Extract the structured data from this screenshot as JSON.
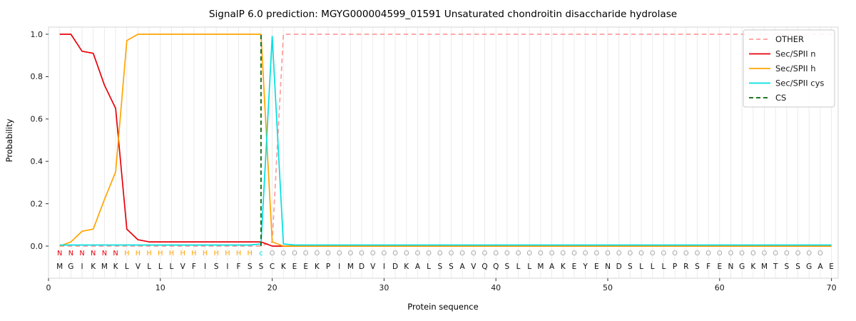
{
  "chart_data": {
    "type": "line",
    "title": "SignalP 6.0 prediction: MGYG000004599_01591 Unsaturated chondroitin disaccharide hydrolase",
    "xlabel": "Protein sequence",
    "ylabel": "Probability",
    "x_first_position": 1,
    "x_last_position": 70,
    "xticks": [
      "0",
      "10",
      "20",
      "30",
      "40",
      "50",
      "60",
      "70"
    ],
    "yticks": [
      "0.0",
      "0.2",
      "0.4",
      "0.6",
      "0.8",
      "1.0"
    ],
    "xlim": [
      0,
      70.6
    ],
    "ylim": [
      -0.15,
      1.03
    ],
    "grid": "light vertical gridline at every residue position",
    "legend_position": "upper right",
    "sequence": "MGIKMKLVLLLVFISIFSSCKEEKPIMDVIDKALSSAVQQSLLMAKEYENDSLLLPRSFENGKMTSSGAE",
    "region_labels": "NNNNNNHHHHHHHHHHHHcOOOOOOOOOOOOOOOOOOOOOOOOOOOOOOOOOOOOOOOOOOOOOOOOOO",
    "label_colors": {
      "N": "#e8000b",
      "H": "#ffa500",
      "c": "#00dfe0",
      "O": "#a6a6a6"
    },
    "sequence_color": "#111111",
    "cs_position": 19,
    "cs_color": "#006400",
    "series": [
      {
        "name": "OTHER",
        "color": "#ff9c9c",
        "dashed": true,
        "values": [
          0,
          0,
          0,
          0,
          0,
          0,
          0,
          0,
          0,
          0,
          0,
          0,
          0,
          0,
          0,
          0,
          0,
          0,
          0,
          0.02,
          1,
          1,
          1,
          1,
          1,
          1,
          1,
          1,
          1,
          1,
          1,
          1,
          1,
          1,
          1,
          1,
          1,
          1,
          1,
          1,
          1,
          1,
          1,
          1,
          1,
          1,
          1,
          1,
          1,
          1,
          1,
          1,
          1,
          1,
          1,
          1,
          1,
          1,
          1,
          1,
          1,
          1,
          1,
          1,
          1,
          1,
          1,
          1,
          1,
          1
        ]
      },
      {
        "name": "Sec/SPII n",
        "color": "#e8000b",
        "dashed": false,
        "values": [
          1,
          1,
          0.92,
          0.91,
          0.76,
          0.65,
          0.08,
          0.03,
          0.02,
          0.02,
          0.02,
          0.02,
          0.02,
          0.02,
          0.02,
          0.02,
          0.02,
          0.02,
          0.02,
          0,
          0,
          0,
          0,
          0,
          0,
          0,
          0,
          0,
          0,
          0,
          0,
          0,
          0,
          0,
          0,
          0,
          0,
          0,
          0,
          0,
          0,
          0,
          0,
          0,
          0,
          0,
          0,
          0,
          0,
          0,
          0,
          0,
          0,
          0,
          0,
          0,
          0,
          0,
          0,
          0,
          0,
          0,
          0,
          0,
          0,
          0,
          0,
          0,
          0,
          0
        ]
      },
      {
        "name": "Sec/SPII h",
        "color": "#ffa500",
        "dashed": false,
        "values": [
          0,
          0.02,
          0.07,
          0.08,
          0.22,
          0.35,
          0.97,
          1,
          1,
          1,
          1,
          1,
          1,
          1,
          1,
          1,
          1,
          1,
          1,
          0.02,
          0,
          0,
          0,
          0,
          0,
          0,
          0,
          0,
          0,
          0,
          0,
          0,
          0,
          0,
          0,
          0,
          0,
          0,
          0,
          0,
          0,
          0,
          0,
          0,
          0,
          0,
          0,
          0,
          0,
          0,
          0,
          0,
          0,
          0,
          0,
          0,
          0,
          0,
          0,
          0,
          0,
          0,
          0,
          0,
          0,
          0,
          0,
          0,
          0,
          0
        ]
      },
      {
        "name": "Sec/SPII cys",
        "color": "#00dfe0",
        "dashed": false,
        "values": [
          0.005,
          0.005,
          0.005,
          0.005,
          0.005,
          0.005,
          0.005,
          0.005,
          0.005,
          0.005,
          0.005,
          0.005,
          0.005,
          0.005,
          0.005,
          0.005,
          0.005,
          0.005,
          0.01,
          0.99,
          0.01,
          0.005,
          0.005,
          0.005,
          0.005,
          0.005,
          0.005,
          0.005,
          0.005,
          0.005,
          0.005,
          0.005,
          0.005,
          0.005,
          0.005,
          0.005,
          0.005,
          0.005,
          0.005,
          0.005,
          0.005,
          0.005,
          0.005,
          0.005,
          0.005,
          0.005,
          0.005,
          0.005,
          0.005,
          0.005,
          0.005,
          0.005,
          0.005,
          0.005,
          0.005,
          0.005,
          0.005,
          0.005,
          0.005,
          0.005,
          0.005,
          0.005,
          0.005,
          0.005,
          0.005,
          0.005,
          0.005,
          0.005,
          0.005,
          0.005
        ]
      }
    ],
    "legend": [
      {
        "label": "OTHER",
        "color": "#ff9c9c",
        "dashed": true
      },
      {
        "label": "Sec/SPII n",
        "color": "#e8000b",
        "dashed": false
      },
      {
        "label": "Sec/SPII h",
        "color": "#ffa500",
        "dashed": false
      },
      {
        "label": "Sec/SPII cys",
        "color": "#00dfe0",
        "dashed": false
      },
      {
        "label": "CS",
        "color": "#006400",
        "dashed": true
      }
    ]
  }
}
